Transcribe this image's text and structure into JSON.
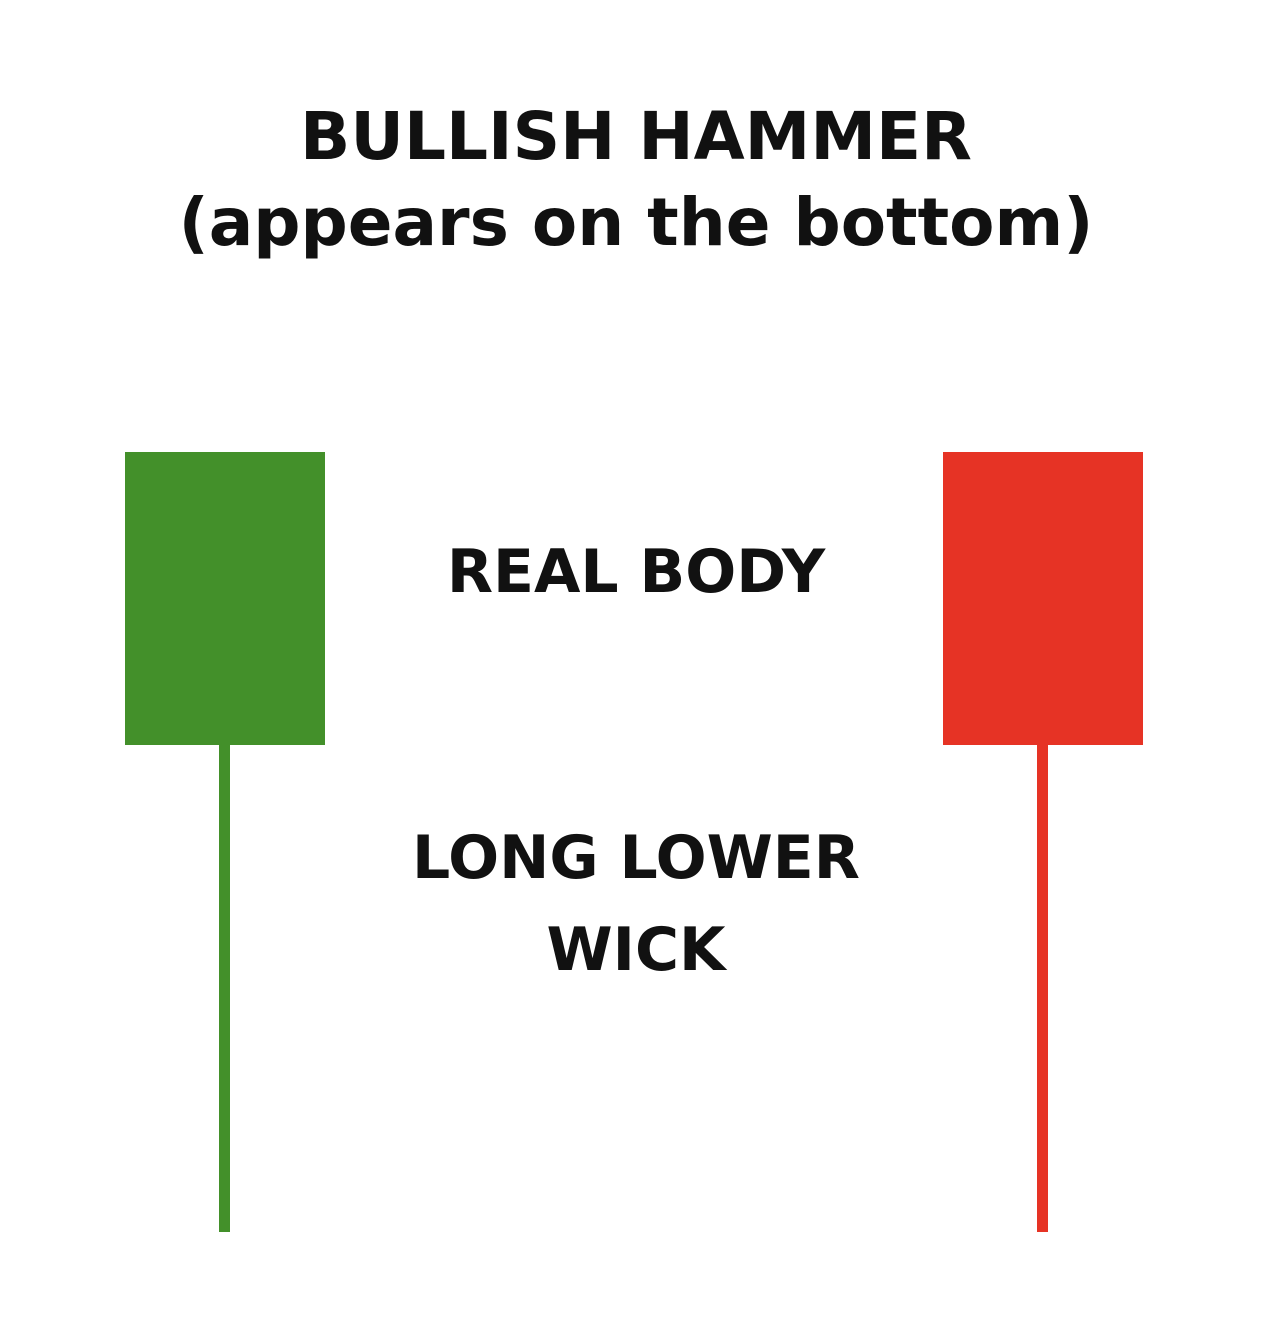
{
  "title": {
    "line1": "BULLISH HAMMER",
    "line2": "(appears on the bottom)"
  },
  "labels": {
    "real_body": "REAL BODY",
    "wick_line1": "LONG LOWER",
    "wick_line2": "WICK"
  },
  "candles": [
    {
      "name": "bullish",
      "color": "#43902a"
    },
    {
      "name": "bearish",
      "color": "#e63325"
    }
  ]
}
